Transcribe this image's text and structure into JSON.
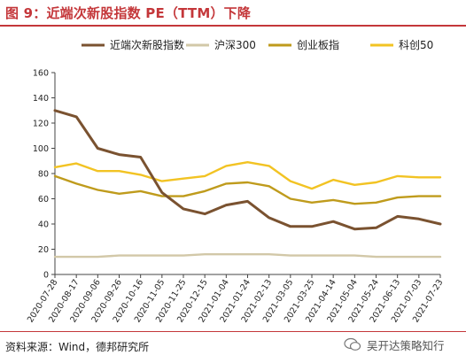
{
  "title": "图 9：近端次新股指数 PE（TTM）下降",
  "source": "资料来源：Wind，德邦研究所",
  "watermark": "吴开达策略知行",
  "colors": {
    "title": "#c4373a",
    "series": [
      "#7a5230",
      "#d2c8a8",
      "#bf9b1c",
      "#f2c323"
    ]
  },
  "chart_data": {
    "type": "line",
    "ylim": [
      0,
      160
    ],
    "yticks": [
      0,
      20,
      40,
      60,
      80,
      100,
      120,
      140,
      160
    ],
    "grid": false,
    "legend_position": "top",
    "x": [
      "2020-07-28",
      "2020-08-17",
      "2020-09-06",
      "2020-09-26",
      "2020-10-16",
      "2020-11-05",
      "2020-11-25",
      "2020-12-15",
      "2021-01-04",
      "2021-01-24",
      "2021-02-13",
      "2021-03-05",
      "2021-03-25",
      "2021-04-14",
      "2021-05-04",
      "2021-05-24",
      "2021-06-13",
      "2021-07-03",
      "2021-07-23"
    ],
    "series": [
      {
        "name": "近端次新股指数",
        "values": [
          130,
          125,
          100,
          95,
          93,
          65,
          52,
          48,
          55,
          58,
          45,
          38,
          38,
          42,
          36,
          37,
          46,
          44,
          40
        ]
      },
      {
        "name": "沪深300",
        "values": [
          14,
          14,
          14,
          15,
          15,
          15,
          15,
          16,
          16,
          16,
          16,
          15,
          15,
          15,
          15,
          14,
          14,
          14,
          14
        ]
      },
      {
        "name": "创业板指",
        "values": [
          78,
          72,
          67,
          64,
          66,
          62,
          62,
          66,
          72,
          73,
          70,
          60,
          57,
          59,
          56,
          57,
          61,
          62,
          62
        ]
      },
      {
        "name": "科创50",
        "values": [
          85,
          88,
          82,
          82,
          79,
          74,
          76,
          78,
          86,
          89,
          86,
          74,
          68,
          75,
          71,
          73,
          78,
          77,
          77
        ]
      }
    ]
  }
}
